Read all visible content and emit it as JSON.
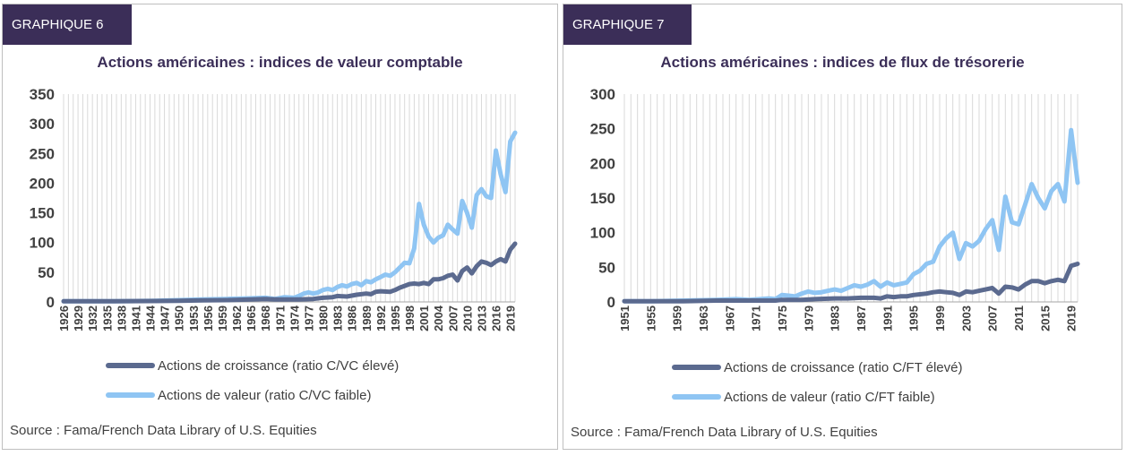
{
  "colors": {
    "tag_bg": "#3b2e58",
    "title": "#3b2e58",
    "growth": "#5b6a8f",
    "value": "#8fc5f3",
    "grid": "#d9d9d9",
    "text": "#404040"
  },
  "panels": [
    {
      "tag": "GRAPHIQUE 6",
      "source": "Source : Fama/French Data Library of U.S. Equities",
      "legend": [
        "Actions de croissance (ratio C/VC élevé)",
        "Actions de valeur (ratio C/VC faible)"
      ]
    },
    {
      "tag": "GRAPHIQUE 7",
      "source": "Source : Fama/French Data Library of U.S. Equities",
      "legend": [
        "Actions de croissance (ratio C/FT élevé)",
        "Actions de valeur (ratio C/FT faible)"
      ]
    }
  ],
  "chart_data": [
    {
      "type": "line",
      "title": "Actions américaines : indices de valeur comptable",
      "xlabel": "",
      "ylabel": "",
      "x_range": [
        1926,
        2020
      ],
      "ylim": [
        0,
        350
      ],
      "yticks": [
        0,
        50,
        100,
        150,
        200,
        250,
        300,
        350
      ],
      "xtick_labels": [
        "1926",
        "1929",
        "1932",
        "1935",
        "1938",
        "1941",
        "1944",
        "1947",
        "1950",
        "1953",
        "1956",
        "1959",
        "1962",
        "1965",
        "1968",
        "1971",
        "1974",
        "1977",
        "1980",
        "1983",
        "1986",
        "1989",
        "1992",
        "1995",
        "1998",
        "2001",
        "2004",
        "2007",
        "2010",
        "2013",
        "2016",
        "2019"
      ],
      "grid": "vertical",
      "legend_position": "bottom",
      "series": [
        {
          "name": "Actions de croissance (ratio C/VC élevé)",
          "color": "#5b6a8f",
          "points": [
            [
              1926,
              1
            ],
            [
              1935,
              1
            ],
            [
              1945,
              1.5
            ],
            [
              1950,
              2
            ],
            [
              1955,
              2.5
            ],
            [
              1960,
              3
            ],
            [
              1965,
              4
            ],
            [
              1968,
              5
            ],
            [
              1970,
              4
            ],
            [
              1975,
              4
            ],
            [
              1978,
              5
            ],
            [
              1980,
              7
            ],
            [
              1982,
              8
            ],
            [
              1983,
              10
            ],
            [
              1985,
              9
            ],
            [
              1987,
              12
            ],
            [
              1989,
              14
            ],
            [
              1990,
              13
            ],
            [
              1991,
              17
            ],
            [
              1992,
              18
            ],
            [
              1994,
              17
            ],
            [
              1995,
              20
            ],
            [
              1996,
              24
            ],
            [
              1997,
              27
            ],
            [
              1998,
              30
            ],
            [
              1999,
              31
            ],
            [
              2000,
              30
            ],
            [
              2001,
              32
            ],
            [
              2002,
              30
            ],
            [
              2003,
              38
            ],
            [
              2004,
              38
            ],
            [
              2005,
              40
            ],
            [
              2006,
              44
            ],
            [
              2007,
              46
            ],
            [
              2008,
              36
            ],
            [
              2009,
              52
            ],
            [
              2010,
              58
            ],
            [
              2011,
              48
            ],
            [
              2012,
              60
            ],
            [
              2013,
              68
            ],
            [
              2014,
              66
            ],
            [
              2015,
              62
            ],
            [
              2016,
              68
            ],
            [
              2017,
              72
            ],
            [
              2018,
              68
            ],
            [
              2019,
              88
            ],
            [
              2020,
              98
            ]
          ]
        },
        {
          "name": "Actions de valeur (ratio C/VC faible)",
          "color": "#8fc5f3",
          "points": [
            [
              1926,
              1
            ],
            [
              1935,
              1
            ],
            [
              1945,
              2
            ],
            [
              1950,
              3
            ],
            [
              1955,
              4
            ],
            [
              1960,
              5
            ],
            [
              1965,
              6
            ],
            [
              1968,
              7
            ],
            [
              1970,
              5
            ],
            [
              1972,
              8
            ],
            [
              1974,
              7
            ],
            [
              1975,
              10
            ],
            [
              1976,
              14
            ],
            [
              1977,
              16
            ],
            [
              1978,
              14
            ],
            [
              1979,
              16
            ],
            [
              1980,
              20
            ],
            [
              1981,
              22
            ],
            [
              1982,
              20
            ],
            [
              1983,
              25
            ],
            [
              1984,
              28
            ],
            [
              1985,
              26
            ],
            [
              1986,
              30
            ],
            [
              1987,
              32
            ],
            [
              1988,
              28
            ],
            [
              1989,
              35
            ],
            [
              1990,
              33
            ],
            [
              1991,
              38
            ],
            [
              1992,
              42
            ],
            [
              1993,
              46
            ],
            [
              1994,
              44
            ],
            [
              1995,
              50
            ],
            [
              1996,
              58
            ],
            [
              1997,
              66
            ],
            [
              1998,
              65
            ],
            [
              1999,
              90
            ],
            [
              2000,
              165
            ],
            [
              2001,
              130
            ],
            [
              2002,
              110
            ],
            [
              2003,
              100
            ],
            [
              2004,
              108
            ],
            [
              2005,
              112
            ],
            [
              2006,
              130
            ],
            [
              2007,
              122
            ],
            [
              2008,
              115
            ],
            [
              2009,
              170
            ],
            [
              2010,
              150
            ],
            [
              2011,
              125
            ],
            [
              2012,
              180
            ],
            [
              2013,
              190
            ],
            [
              2014,
              178
            ],
            [
              2015,
              175
            ],
            [
              2016,
              255
            ],
            [
              2017,
              215
            ],
            [
              2018,
              185
            ],
            [
              2019,
              270
            ],
            [
              2020,
              285
            ]
          ]
        }
      ]
    },
    {
      "type": "line",
      "title": "Actions américaines : indices de flux de trésorerie",
      "xlabel": "",
      "ylabel": "",
      "x_range": [
        1951,
        2020
      ],
      "ylim": [
        0,
        300
      ],
      "yticks": [
        0,
        50,
        100,
        150,
        200,
        250,
        300
      ],
      "xtick_labels": [
        "1951",
        "1955",
        "1959",
        "1963",
        "1967",
        "1971",
        "1975",
        "1979",
        "1983",
        "1987",
        "1991",
        "1995",
        "1999",
        "2003",
        "2007",
        "2011",
        "2015",
        "2019"
      ],
      "grid": "vertical",
      "legend_position": "bottom",
      "series": [
        {
          "name": "Actions de croissance (ratio C/FT élevé)",
          "color": "#5b6a8f",
          "points": [
            [
              1951,
              1
            ],
            [
              1960,
              1
            ],
            [
              1965,
              2
            ],
            [
              1970,
              2
            ],
            [
              1974,
              2
            ],
            [
              1975,
              3
            ],
            [
              1978,
              3
            ],
            [
              1980,
              4
            ],
            [
              1983,
              5
            ],
            [
              1985,
              5
            ],
            [
              1987,
              6
            ],
            [
              1989,
              6
            ],
            [
              1990,
              5
            ],
            [
              1991,
              8
            ],
            [
              1992,
              7
            ],
            [
              1993,
              8
            ],
            [
              1994,
              8
            ],
            [
              1995,
              10
            ],
            [
              1996,
              11
            ],
            [
              1997,
              12
            ],
            [
              1998,
              14
            ],
            [
              1999,
              15
            ],
            [
              2000,
              14
            ],
            [
              2001,
              13
            ],
            [
              2002,
              10
            ],
            [
              2003,
              15
            ],
            [
              2004,
              14
            ],
            [
              2005,
              16
            ],
            [
              2006,
              18
            ],
            [
              2007,
              20
            ],
            [
              2008,
              12
            ],
            [
              2009,
              22
            ],
            [
              2010,
              21
            ],
            [
              2011,
              18
            ],
            [
              2012,
              25
            ],
            [
              2013,
              30
            ],
            [
              2014,
              30
            ],
            [
              2015,
              27
            ],
            [
              2016,
              30
            ],
            [
              2017,
              32
            ],
            [
              2018,
              30
            ],
            [
              2019,
              52
            ],
            [
              2020,
              55
            ]
          ]
        },
        {
          "name": "Actions de valeur (ratio C/FT faible)",
          "color": "#8fc5f3",
          "points": [
            [
              1951,
              1
            ],
            [
              1955,
              1
            ],
            [
              1960,
              2
            ],
            [
              1965,
              3
            ],
            [
              1968,
              4
            ],
            [
              1970,
              3
            ],
            [
              1973,
              5
            ],
            [
              1974,
              4
            ],
            [
              1975,
              10
            ],
            [
              1976,
              9
            ],
            [
              1977,
              8
            ],
            [
              1978,
              12
            ],
            [
              1979,
              15
            ],
            [
              1980,
              13
            ],
            [
              1981,
              14
            ],
            [
              1982,
              16
            ],
            [
              1983,
              18
            ],
            [
              1984,
              16
            ],
            [
              1985,
              20
            ],
            [
              1986,
              24
            ],
            [
              1987,
              22
            ],
            [
              1988,
              25
            ],
            [
              1989,
              30
            ],
            [
              1990,
              22
            ],
            [
              1991,
              28
            ],
            [
              1992,
              24
            ],
            [
              1993,
              26
            ],
            [
              1994,
              28
            ],
            [
              1995,
              40
            ],
            [
              1996,
              45
            ],
            [
              1997,
              55
            ],
            [
              1998,
              58
            ],
            [
              1999,
              80
            ],
            [
              2000,
              92
            ],
            [
              2001,
              100
            ],
            [
              2002,
              62
            ],
            [
              2003,
              85
            ],
            [
              2004,
              80
            ],
            [
              2005,
              88
            ],
            [
              2006,
              105
            ],
            [
              2007,
              118
            ],
            [
              2008,
              75
            ],
            [
              2009,
              152
            ],
            [
              2010,
              115
            ],
            [
              2011,
              112
            ],
            [
              2012,
              140
            ],
            [
              2013,
              170
            ],
            [
              2014,
              150
            ],
            [
              2015,
              135
            ],
            [
              2016,
              160
            ],
            [
              2017,
              170
            ],
            [
              2018,
              145
            ],
            [
              2019,
              248
            ],
            [
              2020,
              172
            ]
          ]
        }
      ]
    }
  ]
}
